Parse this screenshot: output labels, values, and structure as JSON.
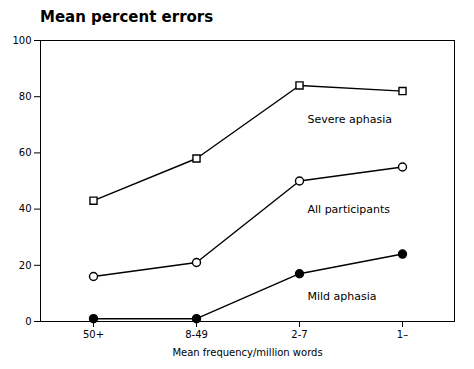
{
  "chart_data": {
    "type": "line",
    "title": "Mean percent errors",
    "xlabel": "Mean frequency/million words",
    "categories": [
      "50+",
      "8-49",
      "2-7",
      "1–"
    ],
    "ylim": [
      0,
      100
    ],
    "yticks": [
      0,
      20,
      40,
      60,
      80,
      100
    ],
    "series": [
      {
        "values": [
          43,
          58,
          84,
          82
        ],
        "color": "black",
        "marker": "open_square"
      },
      {
        "values": [
          16,
          21,
          50,
          55
        ],
        "color": "black",
        "marker": "open_circle"
      },
      {
        "values": [
          1,
          1,
          17,
          24
        ],
        "color": "black",
        "marker": "filled_circle"
      }
    ],
    "annotations": [
      {
        "text": "Severe aphasia",
        "x": "2-7",
        "y": 72
      },
      {
        "text": "All participants",
        "x": "2-7",
        "y": 40
      },
      {
        "text": "Mild aphasia",
        "x": "2-7",
        "y": 9
      }
    ]
  }
}
